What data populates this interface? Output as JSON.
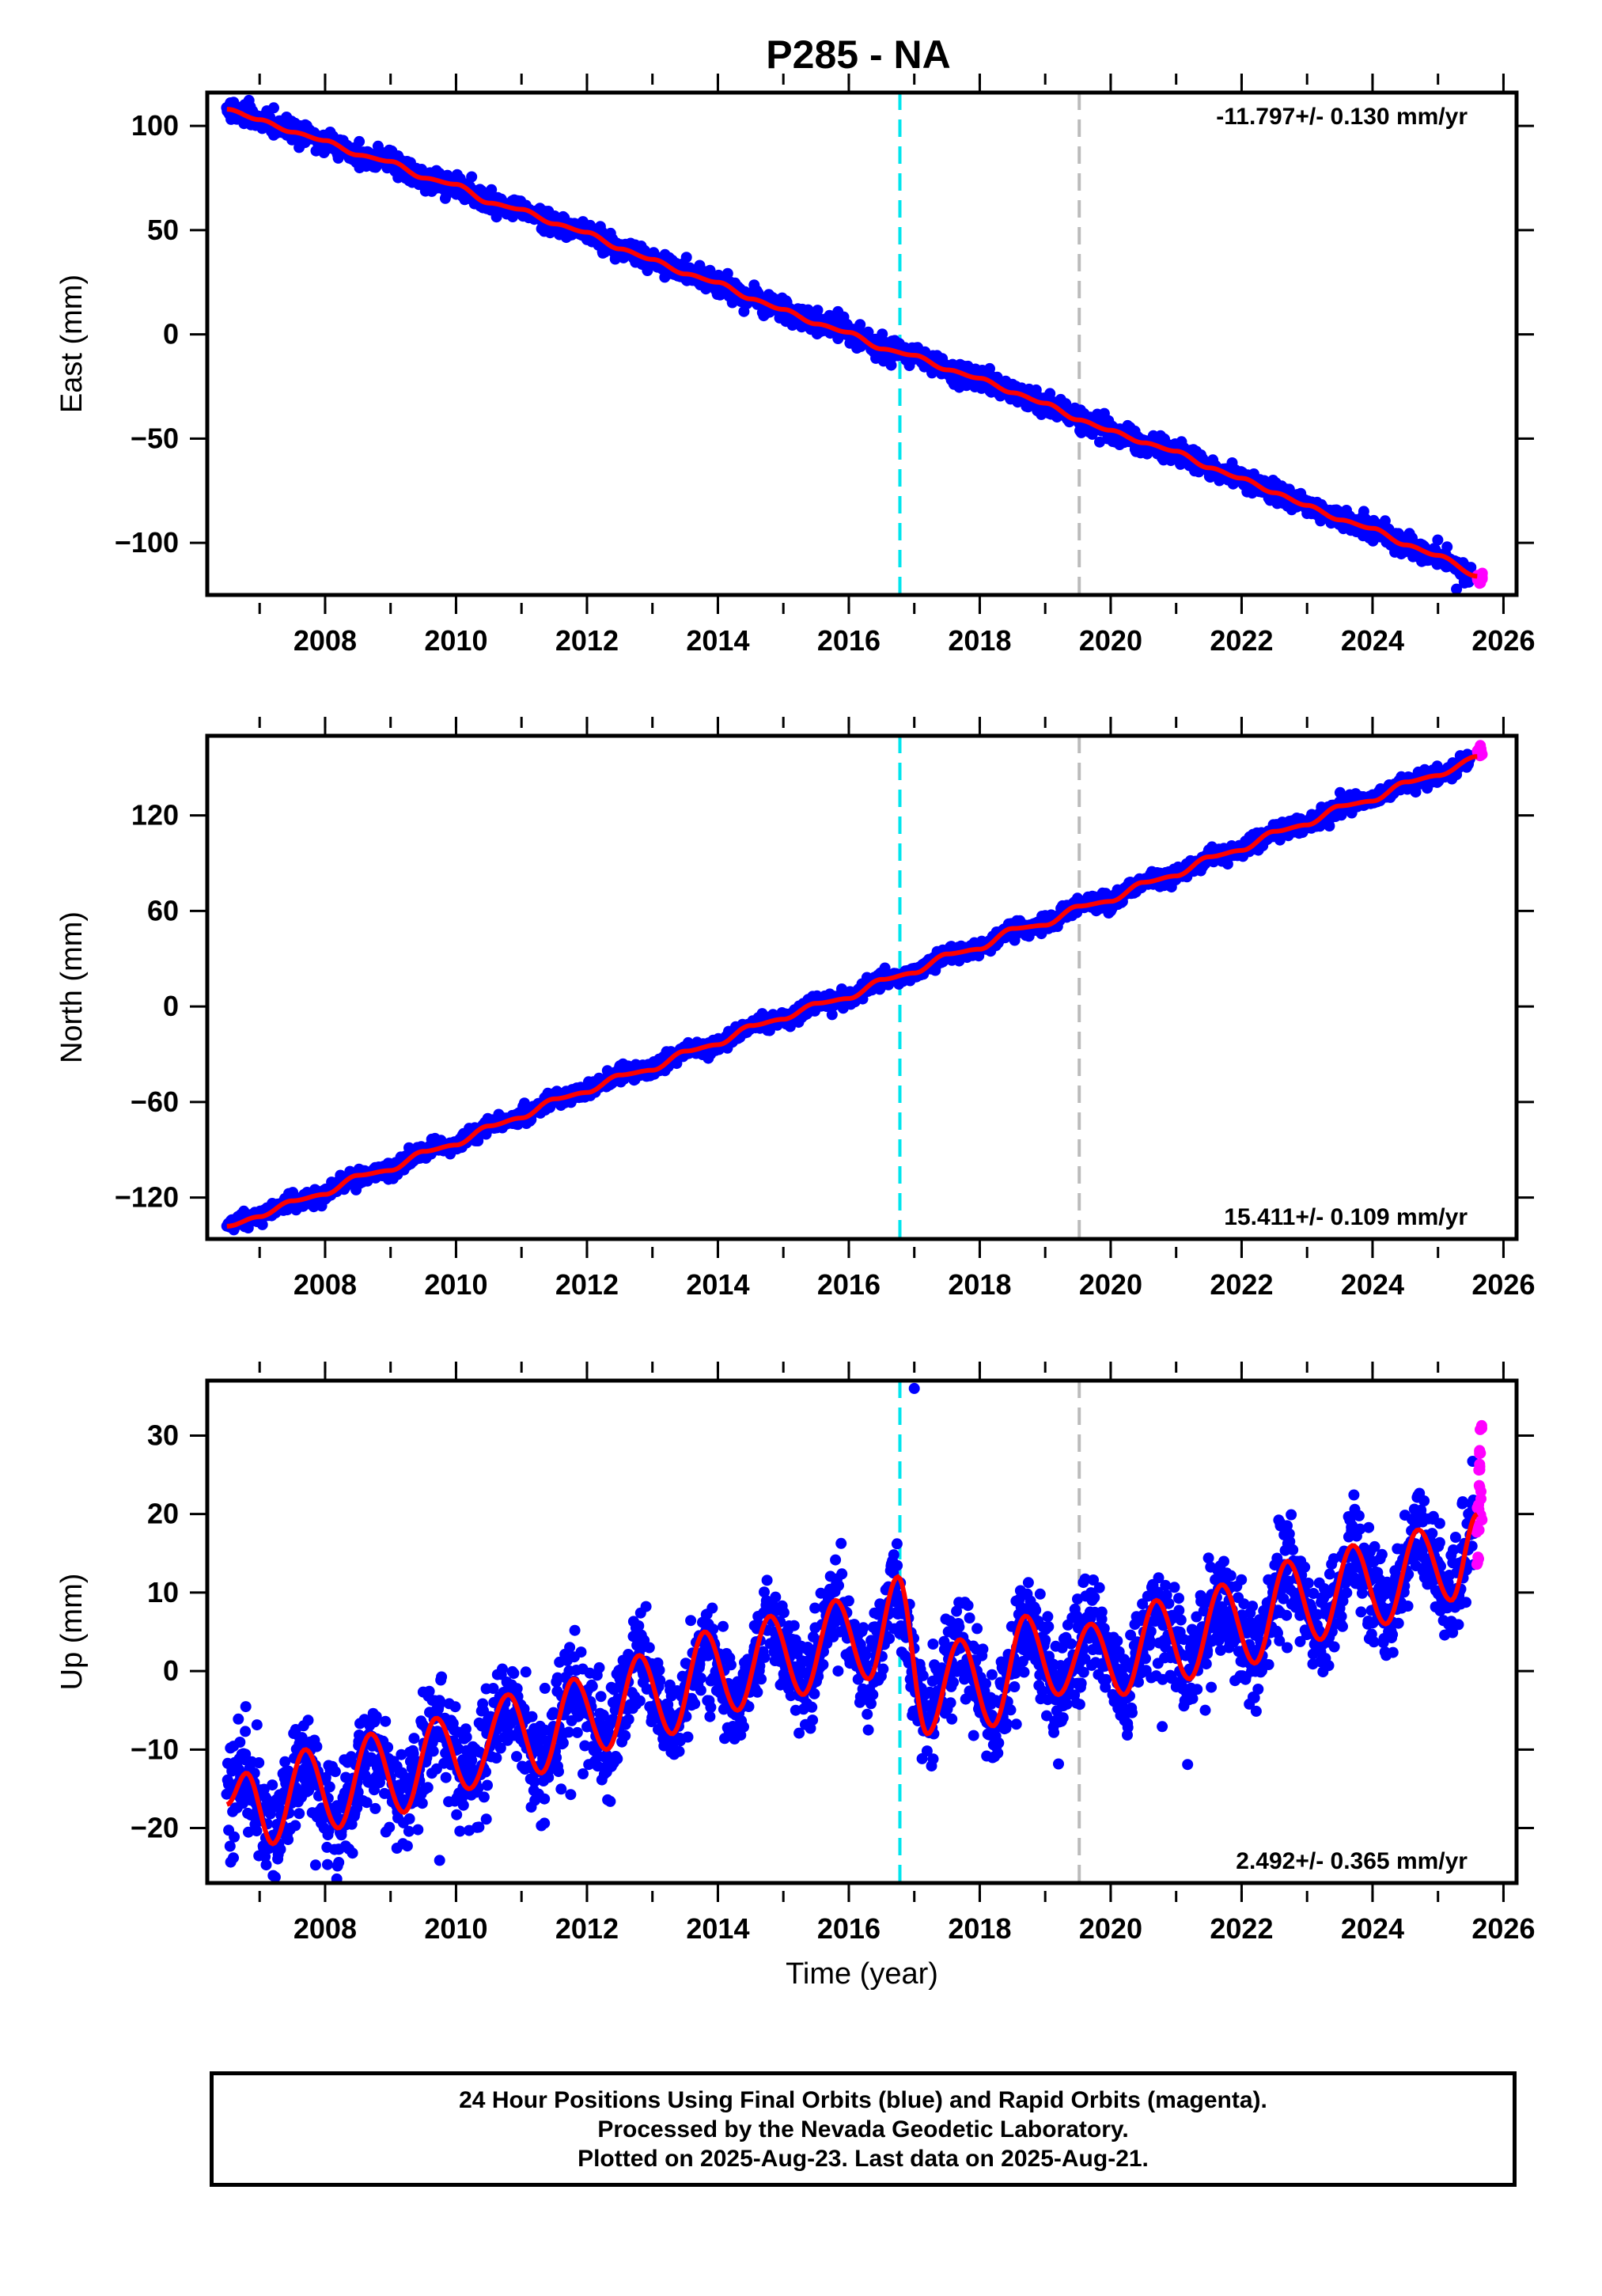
{
  "title": "P285 - NA",
  "colors": {
    "final_orbits": "#0000ff",
    "rapid_orbits": "#ff00ff",
    "model": "#ff0000",
    "cyan_line": "#00e5ee",
    "grey_line": "#bbbbbb",
    "frame": "#000000"
  },
  "chart_data": [
    {
      "type": "scatter",
      "panel": "east",
      "ylabel": "East (mm)",
      "xlabel": "",
      "xlim": [
        2006.2,
        2026.2
      ],
      "ylim": [
        -125,
        116
      ],
      "x_ticks": [
        2008,
        2010,
        2012,
        2014,
        2016,
        2018,
        2020,
        2022,
        2024,
        2026
      ],
      "y_ticks": [
        -100,
        -50,
        0,
        50,
        100
      ],
      "y_tick_labels": [
        "−100",
        "−50",
        "0",
        "50",
        "100"
      ],
      "rate_label": "-11.797+/- 0.130 mm/yr",
      "rate_label_position": "top-right",
      "vertical_lines": [
        {
          "x": 2016.78,
          "color": "cyan",
          "style": "dashed"
        },
        {
          "x": 2019.52,
          "color": "grey",
          "style": "dashed"
        }
      ],
      "series": [
        {
          "role": "final_orbits",
          "x": [
            2006.5,
            2007.0,
            2007.5,
            2008.0,
            2008.5,
            2009.0,
            2009.5,
            2010.0,
            2010.5,
            2011.0,
            2011.5,
            2012.0,
            2012.5,
            2013.0,
            2013.5,
            2014.0,
            2014.5,
            2015.0,
            2015.5,
            2016.0,
            2016.5,
            2017.0,
            2017.5,
            2018.0,
            2018.5,
            2019.0,
            2019.5,
            2020.0,
            2020.5,
            2021.0,
            2021.5,
            2022.0,
            2022.5,
            2023.0,
            2023.5,
            2024.0,
            2024.5,
            2025.0,
            2025.5
          ],
          "y": [
            109,
            103,
            97,
            93,
            86,
            83,
            75,
            72,
            63,
            60,
            53,
            49,
            41,
            36,
            29,
            25,
            17,
            12,
            5,
            1,
            -7,
            -10,
            -17,
            -21,
            -28,
            -33,
            -41,
            -46,
            -52,
            -56,
            -64,
            -69,
            -76,
            -82,
            -89,
            -93,
            -101,
            -106,
            -115
          ],
          "scatter_sd": 2.5
        },
        {
          "role": "rapid_orbits",
          "x": [
            2025.62,
            2025.64,
            2025.66
          ],
          "y": [
            -117,
            -118,
            -116
          ],
          "scatter_sd": 0.8
        },
        {
          "role": "model",
          "x": [
            2006.5,
            2007.0,
            2007.5,
            2008.0,
            2008.5,
            2009.0,
            2009.5,
            2010.0,
            2010.5,
            2011.0,
            2011.5,
            2012.0,
            2012.5,
            2013.0,
            2013.5,
            2014.0,
            2014.5,
            2015.0,
            2015.5,
            2016.0,
            2016.5,
            2017.0,
            2017.5,
            2018.0,
            2018.5,
            2019.0,
            2019.5,
            2020.0,
            2020.5,
            2021.0,
            2021.5,
            2022.0,
            2022.5,
            2023.0,
            2023.5,
            2024.0,
            2024.5,
            2025.0,
            2025.6
          ],
          "y": [
            108,
            103,
            97,
            93,
            86,
            83,
            75,
            72,
            63,
            60,
            53,
            49,
            41,
            36,
            29,
            25,
            17,
            12,
            5,
            1,
            -7,
            -10,
            -17,
            -21,
            -28,
            -33,
            -41,
            -46,
            -52,
            -56,
            -64,
            -69,
            -76,
            -82,
            -89,
            -93,
            -101,
            -106,
            -116
          ]
        }
      ]
    },
    {
      "type": "scatter",
      "panel": "north",
      "ylabel": "North (mm)",
      "xlabel": "",
      "xlim": [
        2006.2,
        2026.2
      ],
      "ylim": [
        -146,
        170
      ],
      "x_ticks": [
        2008,
        2010,
        2012,
        2014,
        2016,
        2018,
        2020,
        2022,
        2024,
        2026
      ],
      "y_ticks": [
        -120,
        -60,
        0,
        60,
        120
      ],
      "y_tick_labels": [
        "−120",
        "−60",
        "0",
        "60",
        "120"
      ],
      "rate_label": "15.411+/- 0.109 mm/yr",
      "rate_label_position": "bottom-right",
      "vertical_lines": [
        {
          "x": 2016.78,
          "color": "cyan",
          "style": "dashed"
        },
        {
          "x": 2019.52,
          "color": "grey",
          "style": "dashed"
        }
      ],
      "series": [
        {
          "role": "final_orbits",
          "x": [
            2006.5,
            2007.0,
            2007.5,
            2008.0,
            2008.5,
            2009.0,
            2009.5,
            2010.0,
            2010.5,
            2011.0,
            2011.5,
            2012.0,
            2012.5,
            2013.0,
            2013.5,
            2014.0,
            2014.5,
            2015.0,
            2015.5,
            2016.0,
            2016.5,
            2017.0,
            2017.5,
            2018.0,
            2018.5,
            2019.0,
            2019.5,
            2020.0,
            2020.5,
            2021.0,
            2021.5,
            2022.0,
            2022.5,
            2023.0,
            2023.5,
            2024.0,
            2024.5,
            2025.0,
            2025.5
          ],
          "y": [
            -137,
            -132,
            -122,
            -118,
            -106,
            -103,
            -91,
            -87,
            -75,
            -70,
            -58,
            -54,
            -43,
            -40,
            -28,
            -24,
            -12,
            -8,
            2,
            5,
            17,
            21,
            33,
            36,
            49,
            51,
            63,
            66,
            78,
            82,
            94,
            98,
            110,
            114,
            126,
            129,
            141,
            145,
            156
          ],
          "scatter_sd": 2.5
        },
        {
          "role": "rapid_orbits",
          "x": [
            2025.62,
            2025.64,
            2025.66
          ],
          "y": [
            160,
            162,
            159
          ],
          "scatter_sd": 1.2
        },
        {
          "role": "model",
          "x": [
            2006.5,
            2007.0,
            2007.5,
            2008.0,
            2008.5,
            2009.0,
            2009.5,
            2010.0,
            2010.5,
            2011.0,
            2011.5,
            2012.0,
            2012.5,
            2013.0,
            2013.5,
            2014.0,
            2014.5,
            2015.0,
            2015.5,
            2016.0,
            2016.5,
            2017.0,
            2017.5,
            2018.0,
            2018.5,
            2019.0,
            2019.5,
            2020.0,
            2020.5,
            2021.0,
            2021.5,
            2022.0,
            2022.5,
            2023.0,
            2023.5,
            2024.0,
            2024.5,
            2025.0,
            2025.6
          ],
          "y": [
            -138,
            -132,
            -122,
            -118,
            -106,
            -103,
            -91,
            -87,
            -75,
            -70,
            -58,
            -54,
            -43,
            -40,
            -28,
            -24,
            -12,
            -8,
            2,
            5,
            17,
            21,
            33,
            36,
            49,
            51,
            63,
            66,
            78,
            82,
            94,
            98,
            110,
            114,
            126,
            129,
            141,
            145,
            157
          ]
        }
      ]
    },
    {
      "type": "scatter",
      "panel": "up",
      "ylabel": "Up (mm)",
      "xlabel": "Time (year)",
      "xlim": [
        2006.2,
        2026.2
      ],
      "ylim": [
        -27,
        37
      ],
      "x_ticks": [
        2008,
        2010,
        2012,
        2014,
        2016,
        2018,
        2020,
        2022,
        2024,
        2026
      ],
      "y_ticks": [
        -20,
        -10,
        0,
        10,
        20,
        30
      ],
      "y_tick_labels": [
        "−20",
        "−10",
        "0",
        "10",
        "20",
        "30"
      ],
      "rate_label": "2.492+/- 0.365 mm/yr",
      "rate_label_position": "bottom-right",
      "vertical_lines": [
        {
          "x": 2016.78,
          "color": "cyan",
          "style": "dashed"
        },
        {
          "x": 2019.52,
          "color": "grey",
          "style": "dashed"
        }
      ],
      "series": [
        {
          "role": "final_orbits",
          "x": [
            2006.5,
            2006.8,
            2007.2,
            2007.7,
            2008.2,
            2008.7,
            2009.2,
            2009.7,
            2010.2,
            2010.8,
            2011.3,
            2011.8,
            2012.3,
            2012.8,
            2013.3,
            2013.8,
            2014.3,
            2014.8,
            2015.3,
            2015.8,
            2016.3,
            2016.7,
            2017.2,
            2017.7,
            2018.2,
            2018.7,
            2019.2,
            2019.7,
            2020.2,
            2020.7,
            2021.2,
            2021.7,
            2022.2,
            2022.7,
            2023.2,
            2023.7,
            2024.2,
            2024.7,
            2025.2,
            2025.55
          ],
          "y": [
            -16,
            -13,
            -22,
            -11,
            -20,
            -8,
            -18,
            -6,
            -15,
            -3,
            -13,
            -1,
            -10,
            2,
            -8,
            5,
            -5,
            7,
            -3,
            9,
            -2,
            12,
            -8,
            4,
            -7,
            6,
            -3,
            6,
            -3,
            9,
            -1,
            10,
            1,
            14,
            4,
            16,
            6,
            18,
            9,
            19
          ],
          "scatter_sd": 3.2
        },
        {
          "role": "rapid_orbits",
          "x": [
            2025.6,
            2025.61,
            2025.62,
            2025.63,
            2025.64,
            2025.65,
            2025.66,
            2025.67
          ],
          "y": [
            14,
            18,
            21,
            26,
            23,
            28,
            31,
            19
          ],
          "scatter_sd": 0.5
        },
        {
          "role": "model",
          "x": [
            2006.5,
            2006.8,
            2007.2,
            2007.7,
            2008.2,
            2008.7,
            2009.2,
            2009.7,
            2010.2,
            2010.8,
            2011.3,
            2011.8,
            2012.3,
            2012.8,
            2013.3,
            2013.8,
            2014.3,
            2014.8,
            2015.3,
            2015.8,
            2016.3,
            2016.75,
            2017.2,
            2017.7,
            2018.2,
            2018.7,
            2019.2,
            2019.7,
            2020.2,
            2020.7,
            2021.2,
            2021.7,
            2022.2,
            2022.7,
            2023.2,
            2023.7,
            2024.2,
            2024.7,
            2025.2,
            2025.6
          ],
          "y": [
            -17,
            -13,
            -22,
            -10,
            -20,
            -8,
            -18,
            -6,
            -15,
            -3,
            -13,
            -1,
            -10,
            2,
            -8,
            5,
            -5,
            7,
            -3,
            9,
            -1,
            12,
            -8,
            4,
            -7,
            7,
            -3,
            6,
            -3,
            9,
            -1,
            11,
            1,
            14,
            4,
            16,
            6,
            18,
            9,
            20
          ]
        }
      ]
    }
  ],
  "footer": {
    "line1": "24 Hour Positions Using Final Orbits (blue) and Rapid Orbits (magenta).",
    "line2": "Processed by the Nevada Geodetic Laboratory.",
    "line3": "Plotted on 2025-Aug-23. Last data on 2025-Aug-21."
  }
}
